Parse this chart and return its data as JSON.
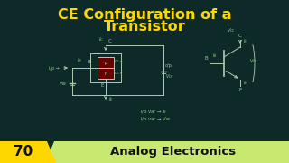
{
  "bg_color": "#0e2a28",
  "title_line1": "CE Configuration of a",
  "title_line2": "Transistor",
  "title_color": "#FFD700",
  "title_fontsize": 11.5,
  "badge_number": "70",
  "badge_bg": "#FFD700",
  "badge_text_color": "#111111",
  "banner_text": "Analog Electronics",
  "banner_bg": "#c8e870",
  "banner_text_color": "#111111",
  "circuit_color": "#b0cdb0",
  "label_color": "#90cc90",
  "transistor_fill": "#6b0000",
  "transistor_border": "#b0cdb0"
}
